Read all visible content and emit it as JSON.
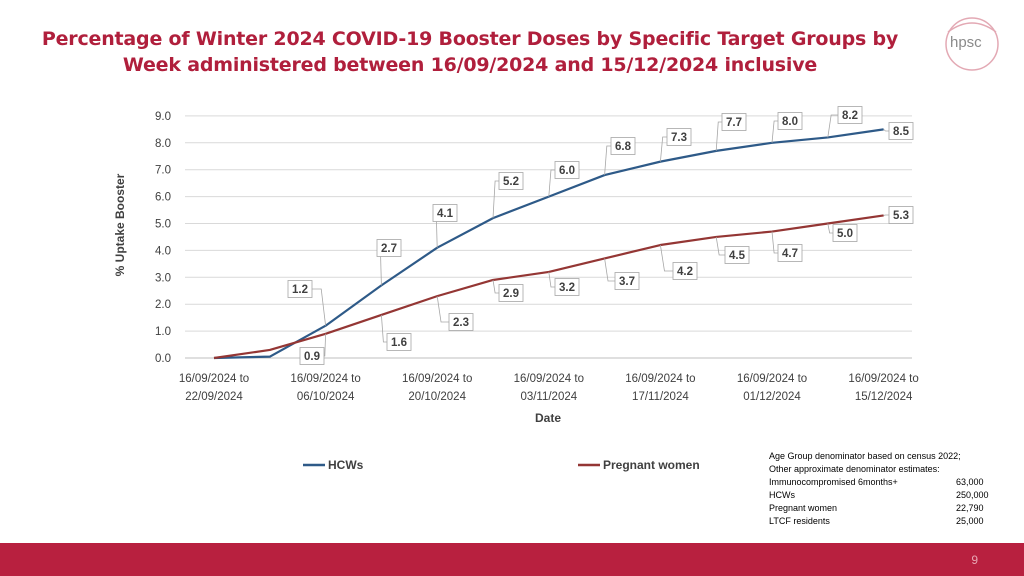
{
  "title": "Percentage of Winter 2024 COVID-19 Booster Doses by Specific Target Groups by Week administered between 16/09/2024 and 15/12/2024 inclusive",
  "logo": {
    "text": "hpsc"
  },
  "colors": {
    "accent": "#b8203f",
    "hcws": "#2e5a88",
    "pregnant": "#943634",
    "title": "#b01f3c"
  },
  "chart_data": {
    "type": "line",
    "title": "",
    "xlabel": "Date",
    "ylabel": "% Uptake Booster",
    "ylim": [
      0,
      9
    ],
    "yticks": [
      "0.0",
      "1.0",
      "2.0",
      "3.0",
      "4.0",
      "5.0",
      "6.0",
      "7.0",
      "8.0",
      "9.0"
    ],
    "categories": [
      "16/09/2024 to 22/09/2024",
      "",
      "16/09/2024 to 06/10/2024",
      "",
      "16/09/2024 to 20/10/2024",
      "",
      "16/09/2024 to 03/11/2024",
      "",
      "16/09/2024 to 17/11/2024",
      "",
      "16/09/2024 to 01/12/2024",
      "",
      "16/09/2024 to 15/12/2024"
    ],
    "xtick_labels": [
      [
        "16/09/2024 to",
        "22/09/2024"
      ],
      [
        "16/09/2024 to",
        "06/10/2024"
      ],
      [
        "16/09/2024 to",
        "20/10/2024"
      ],
      [
        "16/09/2024 to",
        "03/11/2024"
      ],
      [
        "16/09/2024 to",
        "17/11/2024"
      ],
      [
        "16/09/2024 to",
        "01/12/2024"
      ],
      [
        "16/09/2024 to",
        "15/12/2024"
      ]
    ],
    "series": [
      {
        "name": "HCWs",
        "values": [
          0.0,
          0.05,
          1.2,
          2.7,
          4.1,
          5.2,
          6.0,
          6.8,
          7.3,
          7.7,
          8.0,
          8.2,
          8.5
        ],
        "labels": [
          null,
          null,
          "1.2",
          "2.7",
          "4.1",
          "5.2",
          "6.0",
          "6.8",
          "7.3",
          "7.7",
          "8.0",
          "8.2",
          "8.5"
        ]
      },
      {
        "name": "Pregnant women",
        "values": [
          0.0,
          0.3,
          0.9,
          1.6,
          2.3,
          2.9,
          3.2,
          3.7,
          4.2,
          4.5,
          4.7,
          5.0,
          5.3
        ],
        "labels": [
          null,
          null,
          "0.9",
          "1.6",
          "2.3",
          "2.9",
          "3.2",
          "3.7",
          "4.2",
          "4.5",
          "4.7",
          "5.0",
          "5.3"
        ]
      }
    ],
    "legend": "bottom"
  },
  "note": {
    "lines": [
      "Age Group denominator based on census 2022;",
      "Other approximate denominator estimates:"
    ],
    "rows": [
      {
        "label": "Immunocompromised 6months+",
        "value": "63,000"
      },
      {
        "label": "HCWs",
        "value": "250,000"
      },
      {
        "label": "Pregnant women",
        "value": "22,790"
      },
      {
        "label": "LTCF residents",
        "value": "25,000"
      }
    ]
  },
  "footer": {
    "page_number": "9"
  }
}
